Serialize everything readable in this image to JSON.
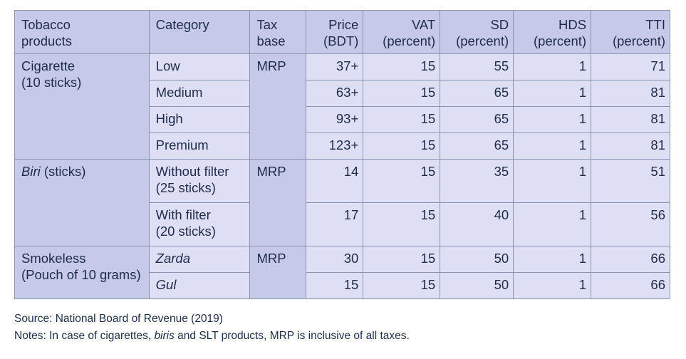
{
  "headers": {
    "products": [
      "Tobacco",
      "products"
    ],
    "category": [
      "Category"
    ],
    "tax_base": [
      "Tax",
      "base"
    ],
    "price": [
      "Price",
      "(BDT)"
    ],
    "vat": [
      "VAT",
      "(percent)"
    ],
    "sd": [
      "SD",
      "(percent)"
    ],
    "hds": [
      "HDS",
      "(percent)"
    ],
    "tti": [
      "TTI",
      "(percent)"
    ]
  },
  "groups": [
    {
      "product_lines": [
        "Cigarette",
        "(10 sticks)"
      ],
      "tax_base": "MRP",
      "rows": [
        {
          "category": [
            "Low"
          ],
          "price": "37+",
          "vat": "15",
          "sd": "55",
          "hds": "1",
          "tti": "71"
        },
        {
          "category": [
            "Medium"
          ],
          "price": "63+",
          "vat": "15",
          "sd": "65",
          "hds": "1",
          "tti": "81"
        },
        {
          "category": [
            "High"
          ],
          "price": "93+",
          "vat": "15",
          "sd": "65",
          "hds": "1",
          "tti": "81"
        },
        {
          "category": [
            "Premium"
          ],
          "price": "123+",
          "vat": "15",
          "sd": "65",
          "hds": "1",
          "tti": "81"
        }
      ]
    },
    {
      "product_italic": "Biri",
      "product_rest": " (sticks)",
      "tax_base": "MRP",
      "rows": [
        {
          "category": [
            "Without filter",
            "(25 sticks)"
          ],
          "price": "14",
          "vat": "15",
          "sd": "35",
          "hds": "1",
          "tti": "51"
        },
        {
          "category": [
            "With filter",
            "(20 sticks)"
          ],
          "price": "17",
          "vat": "15",
          "sd": "40",
          "hds": "1",
          "tti": "56"
        }
      ]
    },
    {
      "product_lines": [
        "Smokeless",
        "(Pouch of 10 grams)"
      ],
      "tax_base": "MRP",
      "rows": [
        {
          "category": [
            "Zarda"
          ],
          "price": "30",
          "vat": "15",
          "sd": "50",
          "hds": "1",
          "tti": "66"
        },
        {
          "category": [
            "Gul"
          ],
          "price": "15",
          "vat": "15",
          "sd": "50",
          "hds": "1",
          "tti": "66"
        }
      ]
    }
  ],
  "source": "Source: National Board of Revenue (2019)",
  "notes": {
    "prefix": "Notes: In case of cigarettes, ",
    "italic": "biris",
    "suffix": " and SLT products, MRP is inclusive of all taxes."
  }
}
